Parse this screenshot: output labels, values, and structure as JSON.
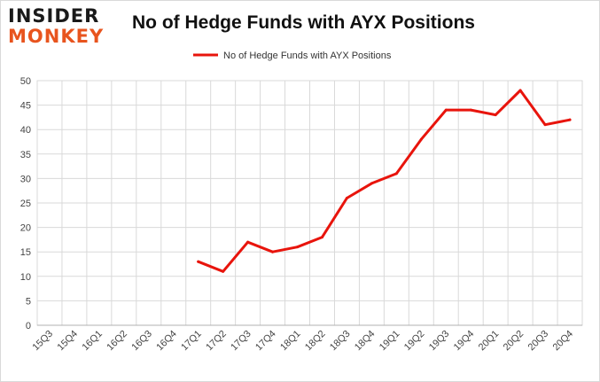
{
  "logo": {
    "line1": "INSIDER",
    "line2": "MONKEY"
  },
  "colors": {
    "series": "#e8140c",
    "grid": "#d9d9d9",
    "axis": "#b0b0b0"
  },
  "chart_data": {
    "type": "line",
    "title": "No of Hedge Funds with AYX Positions",
    "xlabel": "",
    "ylabel": "",
    "ylim": [
      0,
      50
    ],
    "yticks": [
      0,
      5,
      10,
      15,
      20,
      25,
      30,
      35,
      40,
      45,
      50
    ],
    "grid": true,
    "legend_position": "top-center",
    "categories": [
      "15Q3",
      "15Q4",
      "16Q1",
      "16Q2",
      "16Q3",
      "16Q4",
      "17Q1",
      "17Q2",
      "17Q3",
      "17Q4",
      "18Q1",
      "18Q2",
      "18Q3",
      "18Q4",
      "19Q1",
      "19Q2",
      "19Q3",
      "19Q4",
      "20Q1",
      "20Q2",
      "20Q3",
      "20Q4"
    ],
    "series": [
      {
        "name": "No of Hedge Funds with AYX Positions",
        "values": [
          null,
          null,
          null,
          null,
          null,
          null,
          13,
          11,
          17,
          15,
          16,
          18,
          26,
          29,
          31,
          38,
          44,
          44,
          43,
          48,
          41,
          42
        ]
      }
    ]
  }
}
